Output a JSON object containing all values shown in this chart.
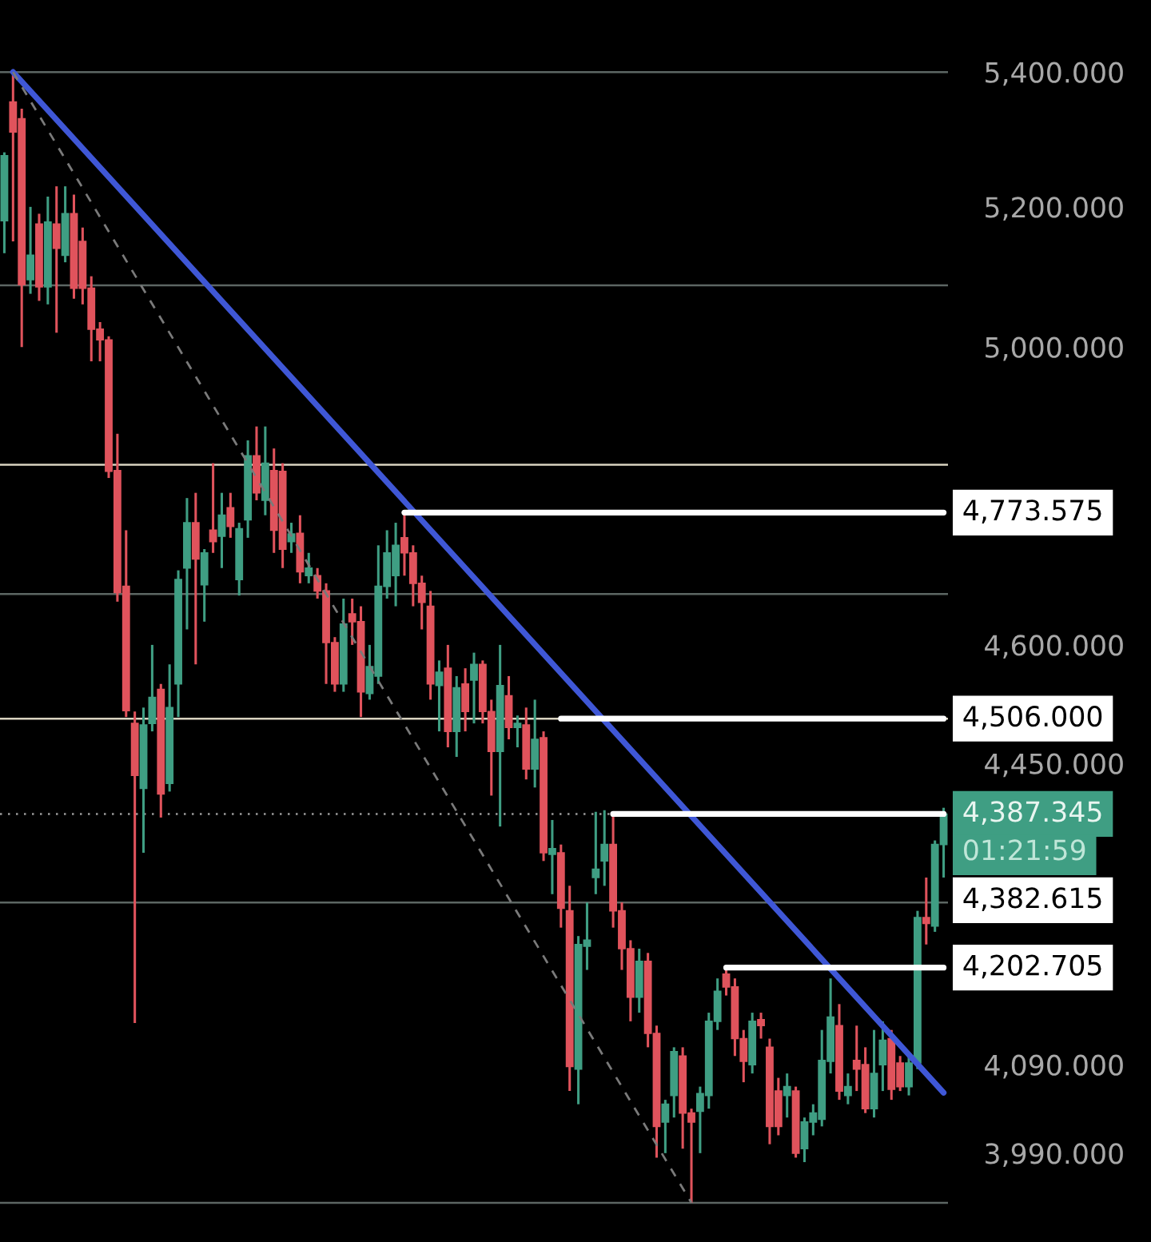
{
  "chart_data": {
    "type": "candlestick",
    "categories": [
      null,
      null,
      null,
      null,
      null,
      null,
      null,
      null,
      null,
      null,
      null,
      null,
      null,
      null,
      null,
      null,
      null,
      null,
      null,
      null,
      null,
      null,
      null,
      null,
      null,
      null,
      null,
      null,
      null,
      null,
      null,
      null,
      null,
      null,
      null,
      null,
      null,
      null,
      null,
      null,
      null,
      null,
      null,
      null,
      null,
      null,
      null,
      null,
      null,
      null,
      null,
      null,
      null,
      null,
      null,
      null,
      null,
      null,
      null,
      null,
      null,
      null,
      null,
      null,
      null,
      null,
      null,
      null,
      null,
      null,
      null,
      null,
      null,
      null,
      null,
      null,
      null,
      null,
      null,
      null,
      null,
      null,
      null,
      null,
      null,
      null,
      null,
      null,
      null,
      null,
      null,
      null,
      null,
      null,
      null,
      null,
      null,
      null,
      null,
      null,
      null,
      null,
      null,
      null,
      null,
      null,
      null,
      null,
      null
    ],
    "ohlc": [
      [
        5180,
        5280,
        5133,
        5275
      ],
      [
        5355,
        5400,
        5150,
        5310
      ],
      [
        5330,
        5345,
        5000,
        5088
      ],
      [
        5095,
        5200,
        5075,
        5130
      ],
      [
        5175,
        5190,
        5065,
        5085
      ],
      [
        5085,
        5215,
        5060,
        5178
      ],
      [
        5175,
        5230,
        5020,
        5140
      ],
      [
        5130,
        5230,
        5120,
        5190
      ],
      [
        5190,
        5218,
        5068,
        5083
      ],
      [
        5150,
        5170,
        5060,
        5083
      ],
      [
        5083,
        5100,
        4980,
        5025
      ],
      [
        5025,
        5035,
        4980,
        5010
      ],
      [
        5010,
        5015,
        4820,
        4829
      ],
      [
        4830,
        4880,
        4656,
        4668
      ],
      [
        4676,
        4750,
        4508,
        4516
      ],
      [
        4500,
        4515,
        4138,
        4435
      ],
      [
        4419,
        4520,
        4340,
        4498
      ],
      [
        4500,
        4600,
        4490,
        4533
      ],
      [
        4543,
        4550,
        4383,
        4412
      ],
      [
        4425,
        4575,
        4415,
        4520
      ],
      [
        4550,
        4697,
        4508,
        4685
      ],
      [
        4700,
        4793,
        4620,
        4760
      ],
      [
        4760,
        4800,
        4575,
        4712
      ],
      [
        4678,
        4725,
        4630,
        4720
      ],
      [
        4750,
        4840,
        4720,
        4735
      ],
      [
        4742,
        4800,
        4700,
        4770
      ],
      [
        4780,
        4800,
        4740,
        4755
      ],
      [
        4685,
        4760,
        4664,
        4752
      ],
      [
        4764,
        4871,
        4740,
        4850
      ],
      [
        4850,
        4890,
        4790,
        4800
      ],
      [
        4790,
        4890,
        4770,
        4840
      ],
      [
        4830,
        4860,
        4720,
        4750
      ],
      [
        4829,
        4840,
        4700,
        4725
      ],
      [
        4735,
        4760,
        4720,
        4745
      ],
      [
        4746,
        4770,
        4680,
        4695
      ],
      [
        4690,
        4720,
        4680,
        4700
      ],
      [
        4690,
        4700,
        4660,
        4670
      ],
      [
        4670,
        4680,
        4550,
        4603
      ],
      [
        4603,
        4610,
        4540,
        4550
      ],
      [
        4550,
        4660,
        4540,
        4627
      ],
      [
        4640,
        4660,
        4600,
        4630
      ],
      [
        4630,
        4650,
        4508,
        4540
      ],
      [
        4538,
        4600,
        4530,
        4572
      ],
      [
        4560,
        4730,
        4550,
        4676
      ],
      [
        4676,
        4750,
        4660,
        4720
      ],
      [
        4690,
        4760,
        4650,
        4730
      ],
      [
        4740,
        4774,
        4690,
        4720
      ],
      [
        4720,
        4730,
        4650,
        4680
      ],
      [
        4680,
        4690,
        4620,
        4655
      ],
      [
        4650,
        4670,
        4530,
        4550
      ],
      [
        4548,
        4580,
        4490,
        4565
      ],
      [
        4570,
        4600,
        4470,
        4490
      ],
      [
        4490,
        4560,
        4458,
        4545
      ],
      [
        4550,
        4570,
        4490,
        4515
      ],
      [
        4555,
        4590,
        4500,
        4575
      ],
      [
        4575,
        4580,
        4500,
        4515
      ],
      [
        4515,
        4530,
        4410,
        4465
      ],
      [
        4465,
        4600,
        4372,
        4548
      ],
      [
        4535,
        4560,
        4480,
        4495
      ],
      [
        4495,
        4510,
        4470,
        4500
      ],
      [
        4498,
        4520,
        4430,
        4443
      ],
      [
        4443,
        4530,
        4420,
        4480
      ],
      [
        4482,
        4490,
        4330,
        4340
      ],
      [
        4338,
        4380,
        4290,
        4345
      ],
      [
        4340,
        4350,
        4250,
        4273
      ],
      [
        4270,
        4300,
        4060,
        4088
      ],
      [
        4085,
        4240,
        4045,
        4230
      ],
      [
        4228,
        4280,
        4200,
        4235
      ],
      [
        4310,
        4390,
        4290,
        4320
      ],
      [
        4330,
        4392,
        4300,
        4350
      ],
      [
        4350,
        4387,
        4250,
        4270
      ],
      [
        4270,
        4280,
        4200,
        4225
      ],
      [
        4225,
        4235,
        4140,
        4168
      ],
      [
        4168,
        4225,
        4150,
        4210
      ],
      [
        4210,
        4220,
        4110,
        4126
      ],
      [
        4126,
        4135,
        3985,
        4020
      ],
      [
        4025,
        4050,
        3990,
        4045
      ],
      [
        4055,
        4110,
        4030,
        4105
      ],
      [
        4100,
        4110,
        3995,
        4035
      ],
      [
        4035,
        4040,
        3935,
        4025
      ],
      [
        4037,
        4065,
        3990,
        4057
      ],
      [
        4055,
        4150,
        4040,
        4140
      ],
      [
        4140,
        4190,
        4130,
        4175
      ],
      [
        4195,
        4203,
        4170,
        4180
      ],
      [
        4180,
        4190,
        4100,
        4120
      ],
      [
        4120,
        4130,
        4070,
        4094
      ],
      [
        4090,
        4150,
        4080,
        4140
      ],
      [
        4142,
        4150,
        4120,
        4135
      ],
      [
        4110,
        4120,
        4000,
        4020
      ],
      [
        4060,
        4075,
        4010,
        4020
      ],
      [
        4055,
        4080,
        4030,
        4065
      ],
      [
        4060,
        4065,
        3985,
        3990
      ],
      [
        3995,
        4030,
        3980,
        4025
      ],
      [
        4025,
        4045,
        4010,
        4035
      ],
      [
        4028,
        4130,
        4020,
        4095
      ],
      [
        4094,
        4190,
        4080,
        4145
      ],
      [
        4135,
        4160,
        4050,
        4060
      ],
      [
        4055,
        4080,
        4045,
        4065
      ],
      [
        4095,
        4135,
        4060,
        4085
      ],
      [
        4090,
        4110,
        4035,
        4040
      ],
      [
        4040,
        4130,
        4030,
        4080
      ],
      [
        4090,
        4140,
        4060,
        4118
      ],
      [
        4120,
        4130,
        4050,
        4062
      ],
      [
        4092,
        4100,
        4060,
        4065
      ],
      [
        4065,
        4100,
        4055,
        4092
      ],
      [
        4092,
        4270,
        4085,
        4262
      ],
      [
        4262,
        4310,
        4230,
        4255
      ],
      [
        4252,
        4355,
        4245,
        4350
      ],
      [
        4350,
        4395,
        4310,
        4387.345
      ]
    ],
    "colors": [
      "#3f9e83",
      "#e0535c",
      "#e0535c",
      "#3f9e83",
      "#e0535c",
      "#3f9e83",
      "#e0535c",
      "#3f9e83",
      "#e0535c",
      "#e0535c",
      "#e0535c",
      "#e0535c",
      "#e0535c",
      "#e0535c",
      "#e0535c",
      "#e0535c",
      "#3f9e83",
      "#3f9e83",
      "#e0535c",
      "#3f9e83",
      "#3f9e83",
      "#3f9e83",
      "#e0535c",
      "#3f9e83",
      "#e0535c",
      "#3f9e83",
      "#e0535c",
      "#3f9e83",
      "#3f9e83",
      "#e0535c",
      "#3f9e83",
      "#e0535c",
      "#e0535c",
      "#3f9e83",
      "#e0535c",
      "#3f9e83",
      "#e0535c",
      "#e0535c",
      "#e0535c",
      "#3f9e83",
      "#e0535c",
      "#e0535c",
      "#3f9e83",
      "#3f9e83",
      "#3f9e83",
      "#3f9e83",
      "#e0535c",
      "#e0535c",
      "#e0535c",
      "#e0535c",
      "#3f9e83",
      "#e0535c",
      "#3f9e83",
      "#e0535c",
      "#3f9e83",
      "#e0535c",
      "#e0535c",
      "#3f9e83",
      "#e0535c",
      "#3f9e83",
      "#e0535c",
      "#3f9e83",
      "#e0535c",
      "#3f9e83",
      "#e0535c",
      "#e0535c",
      "#3f9e83",
      "#3f9e83",
      "#3f9e83",
      "#3f9e83",
      "#e0535c",
      "#e0535c",
      "#e0535c",
      "#3f9e83",
      "#e0535c",
      "#e0535c",
      "#3f9e83",
      "#3f9e83",
      "#e0535c",
      "#e0535c",
      "#3f9e83",
      "#3f9e83",
      "#3f9e83",
      "#e0535c",
      "#e0535c",
      "#e0535c",
      "#3f9e83",
      "#e0535c",
      "#e0535c",
      "#e0535c",
      "#3f9e83",
      "#e0535c",
      "#3f9e83",
      "#3f9e83",
      "#3f9e83",
      "#3f9e83",
      "#e0535c",
      "#3f9e83",
      "#e0535c",
      "#e0535c",
      "#3f9e83",
      "#3f9e83",
      "#e0535c",
      "#e0535c",
      "#3f9e83",
      "#3f9e83",
      "#e0535c",
      "#3f9e83",
      "#3f9e83"
    ],
    "series": [
      {
        "type": "line",
        "color": "#3f57d6",
        "line_style": "solid",
        "values": [
          null,
          5400,
          null,
          null,
          null,
          null,
          null,
          null,
          null,
          null,
          null,
          null,
          null,
          null,
          null,
          null,
          null,
          null,
          null,
          null,
          null,
          null,
          null,
          null,
          null,
          null,
          null,
          null,
          null,
          null,
          null,
          null,
          null,
          null,
          null,
          null,
          null,
          null,
          null,
          null,
          null,
          null,
          null,
          null,
          null,
          null,
          null,
          null,
          null,
          null,
          null,
          null,
          null,
          null,
          null,
          null,
          null,
          null,
          null,
          null,
          null,
          null,
          null,
          null,
          null,
          null,
          null,
          null,
          null,
          null,
          null,
          null,
          null,
          null,
          null,
          null,
          null,
          null,
          null,
          null,
          null,
          null,
          null,
          null,
          null,
          null,
          null,
          null,
          null,
          null,
          null,
          null,
          null,
          null,
          null,
          null,
          null,
          null,
          null,
          null,
          null,
          null,
          null,
          null,
          null,
          null,
          null,
          null,
          4058
        ]
      },
      {
        "type": "line",
        "color": "#7a7a7a",
        "line_style": "dashed",
        "values": [
          null,
          5400,
          null,
          null,
          null,
          null,
          null,
          null,
          null,
          null,
          null,
          null,
          null,
          null,
          null,
          null,
          null,
          null,
          null,
          null,
          null,
          null,
          null,
          null,
          null,
          null,
          null,
          null,
          null,
          null,
          null,
          null,
          null,
          null,
          null,
          null,
          null,
          null,
          null,
          null,
          null,
          null,
          null,
          null,
          null,
          null,
          null,
          null,
          null,
          null,
          null,
          null,
          null,
          null,
          null,
          null,
          null,
          null,
          null,
          null,
          null,
          null,
          null,
          null,
          null,
          null,
          null,
          null,
          null,
          null,
          null,
          null,
          null,
          null,
          null,
          null,
          null,
          null,
          null,
          3935,
          null,
          null,
          null,
          null,
          null,
          null,
          null,
          null,
          null,
          null,
          null,
          null,
          null,
          null,
          null,
          null,
          null,
          null,
          null,
          null,
          null,
          null,
          null,
          null,
          null,
          null,
          null,
          null,
          null
        ]
      },
      {
        "type": "line",
        "color": "#ffffff",
        "line_style": "solid",
        "values": [
          null,
          null,
          null,
          null,
          null,
          null,
          null,
          null,
          null,
          null,
          null,
          null,
          null,
          null,
          null,
          null,
          null,
          null,
          null,
          null,
          null,
          null,
          null,
          null,
          null,
          null,
          null,
          null,
          null,
          null,
          null,
          null,
          null,
          null,
          null,
          null,
          null,
          null,
          null,
          null,
          null,
          null,
          null,
          null,
          null,
          null,
          4773.575,
          null,
          null,
          null,
          null,
          null,
          null,
          null,
          null,
          null,
          null,
          null,
          null,
          null,
          null,
          null,
          null,
          null,
          null,
          null,
          null,
          null,
          null,
          null,
          null,
          null,
          null,
          null,
          null,
          null,
          null,
          null,
          null,
          null,
          null,
          null,
          null,
          null,
          null,
          null,
          null,
          null,
          null,
          null,
          null,
          null,
          null,
          null,
          null,
          null,
          null,
          null,
          null,
          null,
          null,
          null,
          null,
          null,
          null,
          null,
          null,
          null,
          4773.575
        ],
        "value_labels": [
          null,
          null,
          null,
          null,
          null,
          null,
          null,
          null,
          null,
          null,
          null,
          null,
          null,
          null,
          null,
          null,
          null,
          null,
          null,
          null,
          null,
          null,
          null,
          null,
          null,
          null,
          null,
          null,
          null,
          null,
          null,
          null,
          null,
          null,
          null,
          null,
          null,
          null,
          null,
          null,
          null,
          null,
          null,
          null,
          null,
          null,
          null,
          null,
          null,
          null,
          null,
          null,
          null,
          null,
          null,
          null,
          null,
          null,
          null,
          null,
          null,
          null,
          null,
          null,
          null,
          null,
          null,
          null,
          null,
          null,
          null,
          null,
          null,
          null,
          null,
          null,
          null,
          null,
          null,
          null,
          null,
          null,
          null,
          null,
          null,
          null,
          null,
          null,
          null,
          null,
          null,
          null,
          null,
          null,
          null,
          null,
          null,
          null,
          null,
          null,
          null,
          null,
          null,
          null,
          null,
          null,
          null,
          null,
          "4,773.575"
        ]
      },
      {
        "type": "line",
        "color": "#ffffff",
        "line_style": "solid",
        "values": [
          null,
          null,
          null,
          null,
          null,
          null,
          null,
          null,
          null,
          null,
          null,
          null,
          null,
          null,
          null,
          null,
          null,
          null,
          null,
          null,
          null,
          null,
          null,
          null,
          null,
          null,
          null,
          null,
          null,
          null,
          null,
          null,
          null,
          null,
          null,
          null,
          null,
          null,
          null,
          null,
          null,
          null,
          null,
          null,
          null,
          null,
          null,
          null,
          null,
          null,
          null,
          null,
          null,
          null,
          null,
          null,
          null,
          null,
          null,
          null,
          null,
          null,
          null,
          null,
          4506,
          null,
          null,
          null,
          null,
          null,
          null,
          null,
          null,
          null,
          null,
          null,
          null,
          null,
          null,
          null,
          null,
          null,
          null,
          null,
          null,
          null,
          null,
          null,
          null,
          null,
          null,
          null,
          null,
          null,
          null,
          null,
          null,
          null,
          null,
          null,
          null,
          null,
          null,
          null,
          null,
          null,
          null,
          null,
          4506
        ],
        "value_labels": [
          null,
          null,
          null,
          null,
          null,
          null,
          null,
          null,
          null,
          null,
          null,
          null,
          null,
          null,
          null,
          null,
          null,
          null,
          null,
          null,
          null,
          null,
          null,
          null,
          null,
          null,
          null,
          null,
          null,
          null,
          null,
          null,
          null,
          null,
          null,
          null,
          null,
          null,
          null,
          null,
          null,
          null,
          null,
          null,
          null,
          null,
          null,
          null,
          null,
          null,
          null,
          null,
          null,
          null,
          null,
          null,
          null,
          null,
          null,
          null,
          null,
          null,
          null,
          null,
          null,
          null,
          null,
          null,
          null,
          null,
          null,
          null,
          null,
          null,
          null,
          null,
          null,
          null,
          null,
          null,
          null,
          null,
          null,
          null,
          null,
          null,
          null,
          null,
          null,
          null,
          null,
          null,
          null,
          null,
          null,
          null,
          null,
          null,
          null,
          null,
          null,
          null,
          null,
          null,
          null,
          null,
          null,
          null,
          "4,506.000"
        ]
      },
      {
        "type": "line",
        "color": "#ffffff",
        "line_style": "solid",
        "values": [
          null,
          null,
          null,
          null,
          null,
          null,
          null,
          null,
          null,
          null,
          null,
          null,
          null,
          null,
          null,
          null,
          null,
          null,
          null,
          null,
          null,
          null,
          null,
          null,
          null,
          null,
          null,
          null,
          null,
          null,
          null,
          null,
          null,
          null,
          null,
          null,
          null,
          null,
          null,
          null,
          null,
          null,
          null,
          null,
          null,
          null,
          null,
          null,
          null,
          null,
          null,
          null,
          null,
          null,
          null,
          null,
          null,
          null,
          null,
          null,
          null,
          null,
          null,
          null,
          null,
          null,
          null,
          null,
          null,
          null,
          4387.345,
          null,
          null,
          null,
          null,
          null,
          null,
          null,
          null,
          null,
          null,
          null,
          null,
          null,
          null,
          null,
          null,
          null,
          null,
          null,
          null,
          null,
          null,
          null,
          null,
          null,
          null,
          null,
          null,
          null,
          null,
          null,
          null,
          null,
          null,
          null,
          null,
          null,
          4387.345
        ],
        "value_labels": [
          null,
          null,
          null,
          null,
          null,
          null,
          null,
          null,
          null,
          null,
          null,
          null,
          null,
          null,
          null,
          null,
          null,
          null,
          null,
          null,
          null,
          null,
          null,
          null,
          null,
          null,
          null,
          null,
          null,
          null,
          null,
          null,
          null,
          null,
          null,
          null,
          null,
          null,
          null,
          null,
          null,
          null,
          null,
          null,
          null,
          null,
          null,
          null,
          null,
          null,
          null,
          null,
          null,
          null,
          null,
          null,
          null,
          null,
          null,
          null,
          null,
          null,
          null,
          null,
          null,
          null,
          null,
          null,
          null,
          null,
          null,
          null,
          null,
          null,
          null,
          null,
          null,
          null,
          null,
          null,
          null,
          null,
          null,
          null,
          null,
          null,
          null,
          null,
          null,
          null,
          null,
          null,
          null,
          null,
          null,
          null,
          null,
          null,
          null,
          null,
          null,
          null,
          null,
          null,
          null,
          null,
          null,
          null,
          "4,387.345"
        ]
      },
      {
        "type": "line",
        "color": "#ffffff",
        "line_style": "solid",
        "values": [
          null,
          null,
          null,
          null,
          null,
          null,
          null,
          null,
          null,
          null,
          null,
          null,
          null,
          null,
          null,
          null,
          null,
          null,
          null,
          null,
          null,
          null,
          null,
          null,
          null,
          null,
          null,
          null,
          null,
          null,
          null,
          null,
          null,
          null,
          null,
          null,
          null,
          null,
          null,
          null,
          null,
          null,
          null,
          null,
          null,
          null,
          null,
          null,
          null,
          null,
          null,
          null,
          null,
          null,
          null,
          null,
          null,
          null,
          null,
          null,
          null,
          null,
          null,
          null,
          null,
          null,
          null,
          null,
          null,
          null,
          null,
          null,
          null,
          null,
          null,
          null,
          null,
          null,
          null,
          null,
          null,
          null,
          null,
          4202.705,
          null,
          null,
          null,
          null,
          null,
          null,
          null,
          null,
          null,
          null,
          null,
          null,
          null,
          null,
          null,
          null,
          null,
          null,
          null,
          null,
          null,
          null,
          null,
          null,
          4202.705
        ],
        "value_labels": [
          null,
          null,
          null,
          null,
          null,
          null,
          null,
          null,
          null,
          null,
          null,
          null,
          null,
          null,
          null,
          null,
          null,
          null,
          null,
          null,
          null,
          null,
          null,
          null,
          null,
          null,
          null,
          null,
          null,
          null,
          null,
          null,
          null,
          null,
          null,
          null,
          null,
          null,
          null,
          null,
          null,
          null,
          null,
          null,
          null,
          null,
          null,
          null,
          null,
          null,
          null,
          null,
          null,
          null,
          null,
          null,
          null,
          null,
          null,
          null,
          null,
          null,
          null,
          null,
          null,
          null,
          null,
          null,
          null,
          null,
          null,
          null,
          null,
          null,
          null,
          null,
          null,
          null,
          null,
          null,
          null,
          null,
          null,
          null,
          null,
          null,
          null,
          null,
          null,
          null,
          null,
          null,
          null,
          null,
          null,
          null,
          null,
          null,
          null,
          null,
          null,
          null,
          null,
          null,
          null,
          null,
          null,
          null,
          "4,202.705"
        ]
      }
    ],
    "ref_lines": [
      {
        "axis": "y",
        "value": 5400,
        "color": "#5c6663",
        "line_style": "solid"
      },
      {
        "axis": "y",
        "value": 5087,
        "color": "#5c6663",
        "line_style": "solid"
      },
      {
        "axis": "y",
        "value": 4838,
        "color": "#d9d3c0",
        "line_style": "solid"
      },
      {
        "axis": "y",
        "value": 4666,
        "color": "#5c6663",
        "line_style": "solid"
      },
      {
        "axis": "y",
        "value": 4506,
        "color": "#d9d3c0",
        "line_style": "solid"
      },
      {
        "axis": "y",
        "value": 4387.345,
        "color": "#9a9a9a",
        "line_style": "dotted"
      },
      {
        "axis": "y",
        "value": 4280,
        "color": "#5c6663",
        "line_style": "solid"
      },
      {
        "axis": "y",
        "value": 3935,
        "color": "#5c6663",
        "line_style": "solid"
      }
    ],
    "log": "y",
    "ylim": [
      3892,
      5510
    ],
    "yticks": [
      {
        "value": 5400,
        "label": "5,400.000"
      },
      {
        "value": 5200,
        "label": "5,200.000"
      },
      {
        "value": 5000,
        "label": "5,000.000"
      },
      {
        "value": 4600,
        "label": "4,600.000"
      },
      {
        "value": 4450,
        "label": "4,450.000"
      },
      {
        "value": 4090,
        "label": "4,090.000"
      },
      {
        "value": 3990,
        "label": "3,990.000"
      }
    ],
    "tick_labels": "y",
    "grid": false,
    "annotations": [
      "01:21:59",
      "4,382.615"
    ]
  }
}
